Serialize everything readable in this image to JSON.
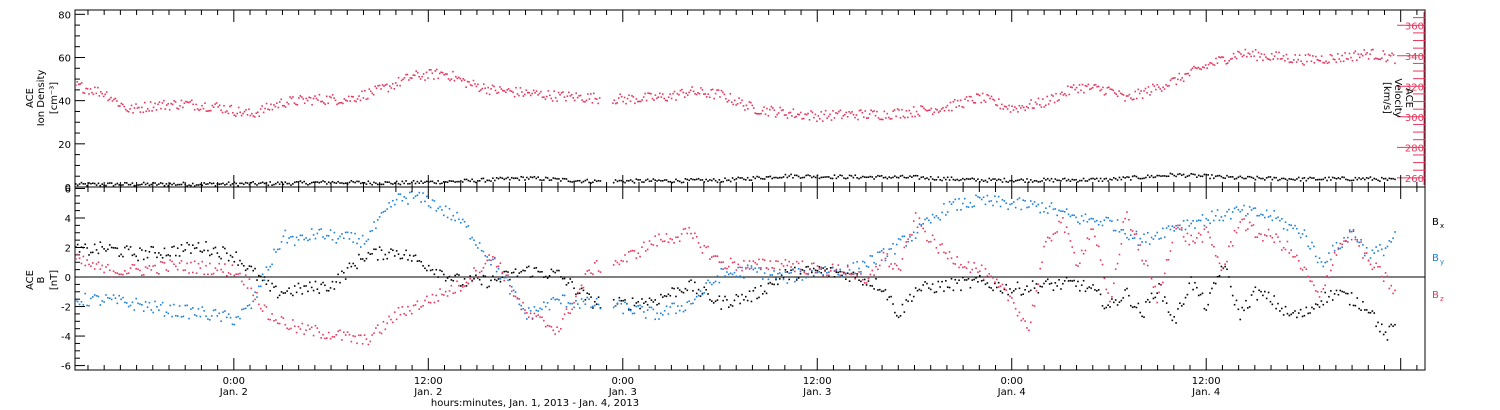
{
  "colors": {
    "density": "#000000",
    "velocity": "#e8365e",
    "bx": "#000000",
    "by": "#1a7fdc",
    "bz": "#e8365e",
    "axis": "#000000"
  },
  "x_axis": {
    "title": "hours:minutes, Jan.  1, 2013 - Jan.  4, 2013",
    "tick_labels": [
      {
        "time": "0:00",
        "date": "Jan. 2"
      },
      {
        "time": "12:00",
        "date": "Jan. 2"
      },
      {
        "time": "0:00",
        "date": "Jan. 3"
      },
      {
        "time": "12:00",
        "date": "Jan. 3"
      },
      {
        "time": "0:00",
        "date": "Jan. 4"
      },
      {
        "time": "12:00",
        "date": "Jan. 4"
      }
    ]
  },
  "chart_data": [
    {
      "type": "scatter",
      "panel": "top",
      "xlabel": "hours:minutes, Jan.  1, 2013 - Jan.  4, 2013",
      "x_unit": "hours since Jan. 1, 2013 0:00",
      "xlim": [
        14.2,
        97.5
      ],
      "left_axis": {
        "label_lines": [
          "ACE",
          "Ion Density",
          "[cm⁻³]"
        ],
        "ylim": [
          0,
          82
        ],
        "ticks": [
          0,
          20,
          40,
          60,
          80
        ],
        "tick_labels": [
          "0",
          "20",
          "40",
          "60",
          "80"
        ]
      },
      "right_axis": {
        "label_lines": [
          "ACE",
          "Velocity",
          "[km/s]"
        ],
        "ylim": [
          254,
          370
        ],
        "ticks": [
          260,
          280,
          300,
          320,
          340,
          360
        ],
        "tick_labels": [
          "260",
          "280",
          "300",
          "320",
          "340",
          "360"
        ]
      },
      "grid": false,
      "series": [
        {
          "axis": "left",
          "color": "#000000",
          "x": [
            14.2,
            18,
            22,
            26,
            30,
            34,
            38,
            42,
            46,
            50,
            54,
            58,
            62,
            66,
            70,
            74,
            78,
            82,
            86,
            90,
            94,
            95.6
          ],
          "y": [
            1.5,
            1.6,
            1.7,
            1.9,
            2.5,
            2.2,
            3,
            4.5,
            3,
            3.2,
            3.4,
            5.5,
            5,
            4.8,
            3.5,
            3.5,
            3.8,
            6,
            4.5,
            4,
            4.2,
            3.5
          ]
        },
        {
          "axis": "right",
          "color": "#e8365e",
          "x": [
            14.2,
            16,
            17.5,
            19,
            21,
            23,
            25,
            27,
            29,
            31,
            33,
            35,
            37,
            38.5,
            40,
            42,
            44,
            46,
            48,
            50,
            51,
            52,
            54,
            56,
            58,
            60,
            62,
            64,
            66,
            68,
            70,
            72,
            74,
            76,
            78,
            79,
            80.5,
            82,
            84,
            86,
            88,
            90,
            92,
            94,
            95.6
          ],
          "y": [
            321,
            316,
            305,
            308,
            309,
            307,
            302,
            310,
            312,
            312,
            318,
            327,
            329,
            322,
            318,
            316,
            314,
            313,
            312,
            313,
            314,
            317,
            315,
            306,
            303,
            301,
            302,
            302,
            304,
            307,
            313,
            306,
            310,
            320,
            318,
            312,
            318,
            324,
            334,
            342,
            340,
            338,
            339,
            342,
            339
          ]
        }
      ]
    },
    {
      "type": "scatter",
      "panel": "bottom",
      "xlabel": "hours:minutes, Jan.  1, 2013 - Jan.  4, 2013",
      "x_unit": "hours since Jan. 1, 2013 0:00",
      "xlim": [
        14.2,
        97.5
      ],
      "ylabel_lines": [
        "ACE",
        "B",
        "[nT]"
      ],
      "ylim": [
        -6.3,
        6.1
      ],
      "ticks": [
        -6,
        -4,
        -2,
        0,
        2,
        4,
        6
      ],
      "tick_labels": [
        "-6",
        "-4",
        "-2",
        "0",
        "2",
        "4",
        "6"
      ],
      "zero_line": true,
      "grid": false,
      "legend_placement": "right",
      "series": [
        {
          "name": "B",
          "subscript": "x",
          "color": "#000000",
          "x": [
            14.2,
            16,
            18,
            20,
            22,
            24,
            25,
            26.5,
            28,
            30,
            32,
            34,
            36,
            38,
            40,
            42,
            44,
            46,
            48,
            50,
            52,
            54,
            56,
            58,
            60,
            62,
            64,
            65,
            66,
            68,
            70,
            72,
            74,
            76,
            77,
            78,
            79,
            80,
            81,
            82,
            83,
            84,
            85,
            86,
            87,
            88,
            89,
            90,
            91,
            92,
            93,
            94,
            95,
            95.6
          ],
          "y": [
            1.8,
            2,
            1.6,
            1.8,
            2.1,
            1.5,
            0.5,
            -1,
            -0.8,
            -0.5,
            1.5,
            1.8,
            0.8,
            -0.3,
            -0.2,
            0.5,
            0.2,
            -1.6,
            -1.8,
            -1.5,
            -0.5,
            -1.7,
            -1.2,
            0.2,
            0.5,
            0.2,
            -0.6,
            -2.5,
            -0.8,
            -0.5,
            -0.3,
            -0.8,
            -0.5,
            -0.4,
            -0.9,
            -2,
            -1,
            -2.5,
            -0.5,
            -3,
            -0.2,
            -2,
            1,
            -2.5,
            -1,
            -1.5,
            -2.5,
            -2.5,
            -1.5,
            -1,
            -1.5,
            -2,
            -4,
            -3.3
          ]
        },
        {
          "name": "B",
          "subscript": "y",
          "color": "#1a7fdc",
          "x": [
            14.2,
            16,
            18,
            20,
            22,
            24,
            25,
            26,
            27,
            28,
            29,
            30,
            32,
            34,
            35,
            36,
            38,
            40,
            42,
            44,
            46,
            48,
            50,
            52,
            54,
            56,
            58,
            60,
            62,
            64,
            66,
            68,
            70,
            72,
            74,
            76,
            78,
            80,
            82,
            84,
            86,
            88,
            89,
            90,
            91,
            92,
            93,
            94,
            95,
            95.6
          ],
          "y": [
            -1.5,
            -1.5,
            -1.8,
            -2.2,
            -2.4,
            -2.8,
            -2,
            0.5,
            2.8,
            2.5,
            3,
            2.8,
            2.5,
            5.3,
            5.5,
            5.2,
            3.8,
            1,
            -2.5,
            -1.5,
            -1.8,
            -2,
            -2.5,
            -1.8,
            0.2,
            0.5,
            0,
            0.5,
            0.5,
            1.5,
            3,
            4.8,
            5.2,
            5,
            4.8,
            4,
            3.8,
            2.5,
            3.5,
            4,
            4.5,
            4.2,
            3.5,
            3,
            1,
            2,
            3.2,
            1.5,
            2,
            2.9
          ]
        },
        {
          "name": "B",
          "subscript": "z",
          "color": "#e8365e",
          "x": [
            14.2,
            16,
            18,
            20,
            22,
            24,
            25,
            26,
            28,
            30,
            32,
            33,
            34,
            36,
            38,
            40,
            42,
            44,
            46,
            48,
            50,
            52,
            54,
            56,
            58,
            60,
            62,
            63,
            64,
            65,
            66,
            67,
            68,
            70,
            72,
            73,
            74,
            75,
            76,
            77,
            78,
            79,
            80,
            81,
            82,
            83,
            84,
            85,
            86,
            87,
            88,
            89,
            90,
            91,
            92,
            93,
            94,
            95,
            95.6
          ],
          "y": [
            1.2,
            0.5,
            0.5,
            0.8,
            0.7,
            0.5,
            -0.5,
            -2.5,
            -3.5,
            -3.8,
            -4.3,
            -3.5,
            -2.5,
            -1.5,
            -0.5,
            1.5,
            -2.5,
            -3.5,
            0.6,
            1.2,
            2.5,
            3,
            1,
            0.8,
            1,
            0.5,
            0.5,
            -0.5,
            1.5,
            0.5,
            4,
            2.5,
            1.5,
            0.5,
            -1.5,
            -3.5,
            2,
            4,
            1,
            3.5,
            -2,
            4.5,
            1.5,
            -1.5,
            3.5,
            2.5,
            3,
            0.5,
            4,
            3,
            2.8,
            2,
            0.5,
            -1.5,
            2,
            3,
            1,
            0,
            -1
          ]
        }
      ]
    }
  ]
}
